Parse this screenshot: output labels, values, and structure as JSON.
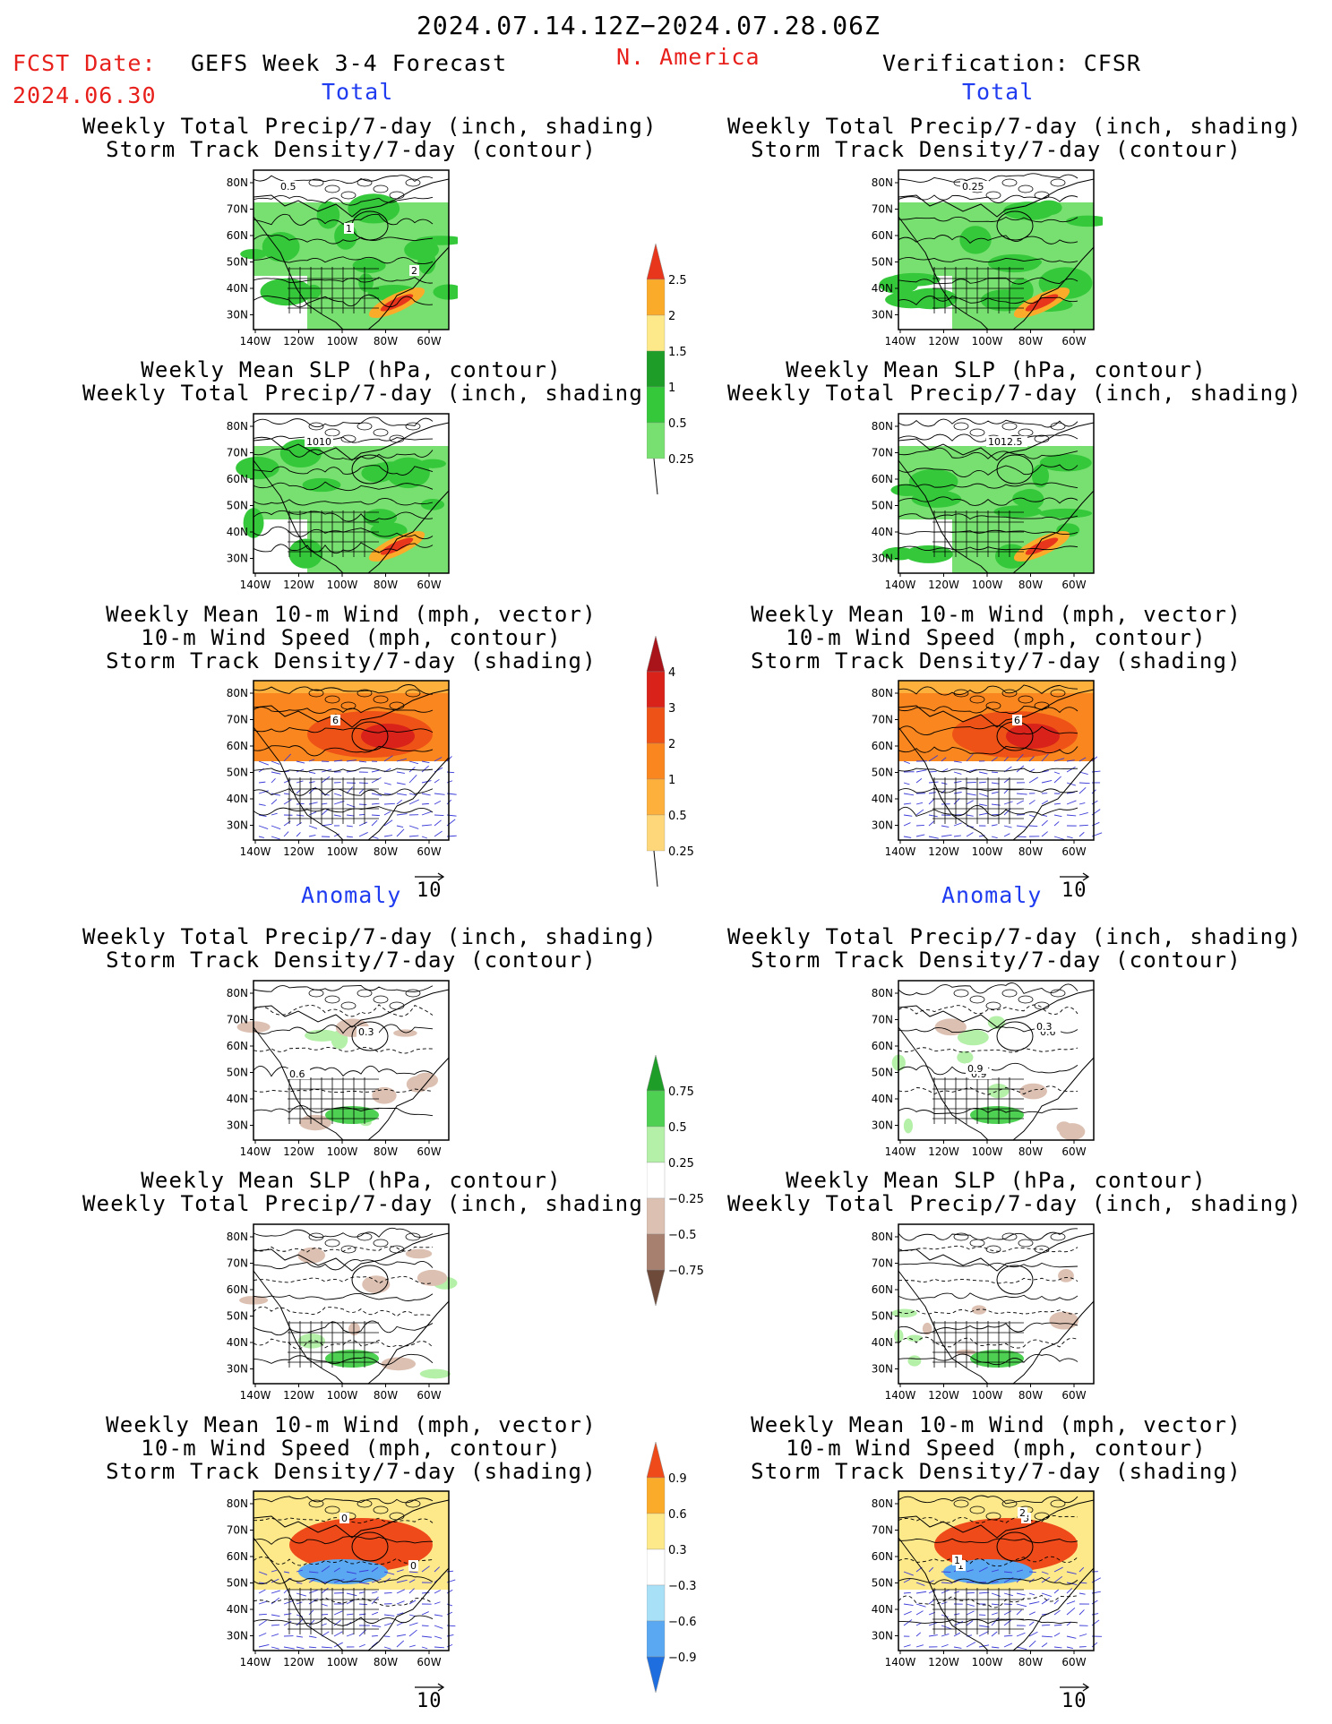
{
  "header": {
    "date_range": "2024.07.14.12Z−2024.07.28.06Z",
    "fcst_label": "FCST Date:",
    "fcst_date": "2024.06.30",
    "model": "GEFS Week 3-4 Forecast",
    "region": "N. America",
    "verification": "Verification: CFSR"
  },
  "sections": {
    "total": "Total",
    "anomaly": "Anomaly"
  },
  "titles": {
    "precip_storm": [
      "Weekly Total Precip/7-day (inch, shading)",
      "Storm Track Density/7-day (contour)"
    ],
    "slp_precip": [
      "Weekly Mean SLP (hPa, contour)",
      "Weekly Total Precip/7-day (inch, shading)"
    ],
    "wind": [
      "Weekly Mean 10-m Wind (mph, vector)",
      "10-m Wind Speed (mph, contour)",
      "Storm Track Density/7-day (shading)"
    ]
  },
  "map_axes": {
    "lat_labels": [
      "80N",
      "70N",
      "60N",
      "50N",
      "40N",
      "30N"
    ],
    "lon_labels": [
      "140W",
      "120W",
      "100W",
      "80W",
      "60W"
    ]
  },
  "vector_ref": "10",
  "colors": {
    "red_text": "#e8201c",
    "blue_text": "#1f3cf0",
    "precip_scale": [
      "#b4f0a8",
      "#78e070",
      "#34c83a",
      "#1e9e28",
      "#fde88a",
      "#fbab2a",
      "#e8361c"
    ],
    "storm_scale": [
      "#fdf5b0",
      "#fdd77a",
      "#fdb03c",
      "#f9861e",
      "#ee5216",
      "#d8221a",
      "#a8141a"
    ],
    "precip_anom_scale": [
      "#6e4a3a",
      "#a88070",
      "#dcc0b2",
      "#ffffff",
      "#b4f0a8",
      "#4ed152",
      "#1e9e28"
    ],
    "storm_anom_scale": [
      "#1e6ee0",
      "#5aa8f2",
      "#a8e0f8",
      "#ffffff",
      "#fde88a",
      "#fbab2a",
      "#ee4a1a"
    ]
  },
  "colorbars": {
    "precip_total": [
      "0.25",
      "0.5",
      "1",
      "1.5",
      "2",
      "2.5"
    ],
    "storm_total": [
      "0.25",
      "0.5",
      "1",
      "2",
      "3",
      "4"
    ],
    "precip_anom": [
      "−0.75",
      "−0.5",
      "−0.25",
      "0.25",
      "0.5",
      "0.75"
    ],
    "storm_anom": [
      "−0.9",
      "−0.6",
      "−0.3",
      "0.3",
      "0.6",
      "0.9"
    ]
  },
  "panel_labels": {
    "fcst_total_precip": [
      "0.5",
      "1",
      "2"
    ],
    "cfsr_total_precip": [
      "0.25"
    ],
    "fcst_total_slp": [
      "1010"
    ],
    "cfsr_total_slp": [
      "1012.5"
    ],
    "fcst_total_wind": [
      "6"
    ],
    "cfsr_total_wind": [
      "6"
    ],
    "fcst_anom_precip": [
      "0.3",
      "0.6"
    ],
    "cfsr_anom_precip": [
      "0.6",
      "0.9",
      "0.3",
      "0.9"
    ],
    "fcst_anom_wind": [
      "0",
      "0"
    ],
    "cfsr_anom_wind": [
      "1",
      "3",
      "1",
      "2"
    ]
  },
  "chart_data": [
    {
      "type": "heatmap",
      "title": "Weekly Total Precip/7-day (inch, shading) / Storm Track Density/7-day (contour)",
      "column": "GEFS Week 3-4 Forecast",
      "section": "Total",
      "colorbar_levels": [
        0.25,
        0.5,
        1,
        1.5,
        2,
        2.5
      ]
    },
    {
      "type": "heatmap",
      "title": "Weekly Total Precip/7-day (inch, shading) / Storm Track Density/7-day (contour)",
      "column": "Verification: CFSR",
      "section": "Total",
      "colorbar_levels": [
        0.25,
        0.5,
        1,
        1.5,
        2,
        2.5
      ]
    },
    {
      "type": "heatmap",
      "title": "Weekly Mean SLP (hPa, contour) / Weekly Total Precip/7-day (inch, shading)",
      "column": "GEFS Week 3-4 Forecast",
      "section": "Total",
      "colorbar_levels": [
        0.25,
        0.5,
        1,
        1.5,
        2,
        2.5
      ]
    },
    {
      "type": "heatmap",
      "title": "Weekly Mean SLP (hPa, contour) / Weekly Total Precip/7-day (inch, shading)",
      "column": "Verification: CFSR",
      "section": "Total",
      "colorbar_levels": [
        0.25,
        0.5,
        1,
        1.5,
        2,
        2.5
      ]
    },
    {
      "type": "heatmap",
      "title": "Weekly Mean 10-m Wind (mph, vector) / 10-m Wind Speed (mph, contour) / Storm Track Density/7-day (shading)",
      "column": "GEFS Week 3-4 Forecast",
      "section": "Total",
      "colorbar_levels": [
        0.25,
        0.5,
        1,
        2,
        3,
        4
      ]
    },
    {
      "type": "heatmap",
      "title": "Weekly Mean 10-m Wind (mph, vector) / 10-m Wind Speed (mph, contour) / Storm Track Density/7-day (shading)",
      "column": "Verification: CFSR",
      "section": "Total",
      "colorbar_levels": [
        0.25,
        0.5,
        1,
        2,
        3,
        4
      ]
    },
    {
      "type": "heatmap",
      "title": "Weekly Total Precip/7-day (inch, shading) / Storm Track Density/7-day (contour)",
      "column": "GEFS Week 3-4 Forecast",
      "section": "Anomaly",
      "colorbar_levels": [
        -0.75,
        -0.5,
        -0.25,
        0.25,
        0.5,
        0.75
      ]
    },
    {
      "type": "heatmap",
      "title": "Weekly Total Precip/7-day (inch, shading) / Storm Track Density/7-day (contour)",
      "column": "Verification: CFSR",
      "section": "Anomaly",
      "colorbar_levels": [
        -0.75,
        -0.5,
        -0.25,
        0.25,
        0.5,
        0.75
      ]
    },
    {
      "type": "heatmap",
      "title": "Weekly Mean SLP (hPa, contour) / Weekly Total Precip/7-day (inch, shading)",
      "column": "GEFS Week 3-4 Forecast",
      "section": "Anomaly",
      "colorbar_levels": [
        -0.75,
        -0.5,
        -0.25,
        0.25,
        0.5,
        0.75
      ]
    },
    {
      "type": "heatmap",
      "title": "Weekly Mean SLP (hPa, contour) / Weekly Total Precip/7-day (inch, shading)",
      "column": "Verification: CFSR",
      "section": "Anomaly",
      "colorbar_levels": [
        -0.75,
        -0.5,
        -0.25,
        0.25,
        0.5,
        0.75
      ]
    },
    {
      "type": "heatmap",
      "title": "Weekly Mean 10-m Wind (mph, vector) / 10-m Wind Speed (mph, contour) / Storm Track Density/7-day (shading)",
      "column": "GEFS Week 3-4 Forecast",
      "section": "Anomaly",
      "colorbar_levels": [
        -0.9,
        -0.6,
        -0.3,
        0.3,
        0.6,
        0.9
      ]
    },
    {
      "type": "heatmap",
      "title": "Weekly Mean 10-m Wind (mph, vector) / 10-m Wind Speed (mph, contour) / Storm Track Density/7-day (shading)",
      "column": "Verification: CFSR",
      "section": "Anomaly",
      "colorbar_levels": [
        -0.9,
        -0.6,
        -0.3,
        0.3,
        0.6,
        0.9
      ]
    }
  ]
}
